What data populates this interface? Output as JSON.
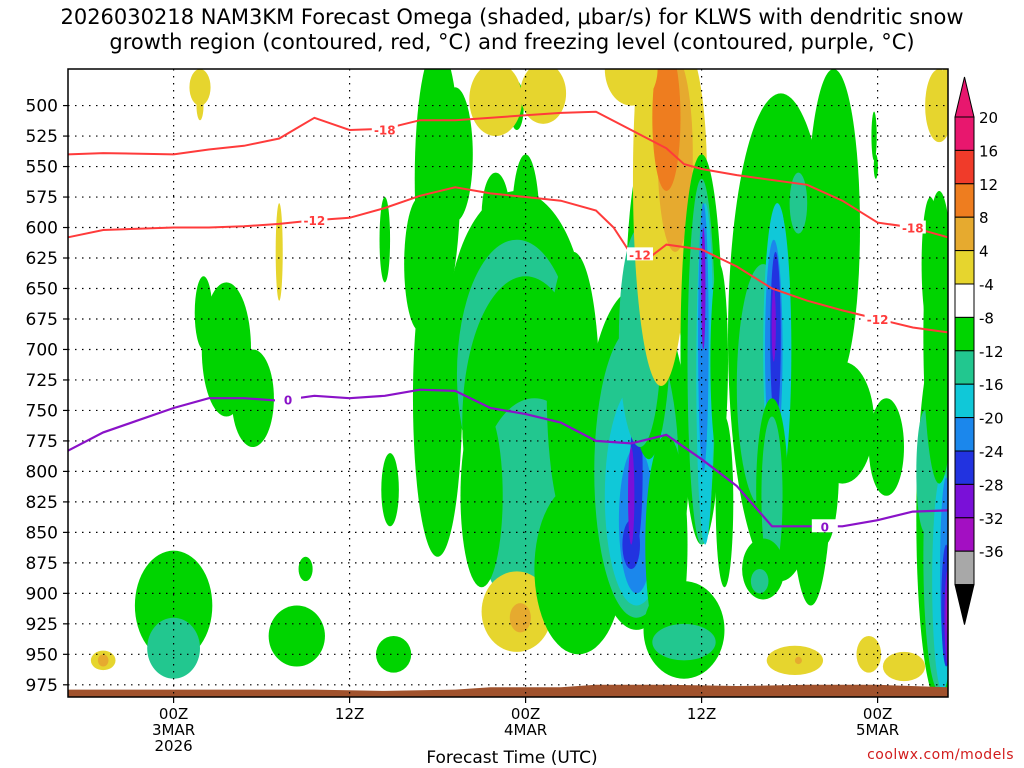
{
  "chart_data": {
    "type": "heatmap",
    "title_line1": "2026030218 NAM3KM Forecast Omega (shaded, μbar/s) for KLWS with dendritic snow",
    "title_line2": "growth region (contoured, red, °C) and freezing level (contoured, purple, °C)",
    "xlabel": "Forecast Time (UTC)",
    "credit": "coolwx.com/models",
    "x_range_hours": [
      -6,
      44
    ],
    "y_range_mb": [
      470,
      985
    ],
    "y_ticks": [
      "500",
      "525",
      "550",
      "575",
      "600",
      "625",
      "650",
      "675",
      "700",
      "725",
      "750",
      "775",
      "800",
      "825",
      "850",
      "875",
      "900",
      "925",
      "950",
      "975"
    ],
    "y_values": [
      500,
      525,
      550,
      575,
      600,
      625,
      650,
      675,
      700,
      725,
      750,
      775,
      800,
      825,
      850,
      875,
      900,
      925,
      950,
      975
    ],
    "x_ticks": [
      {
        "hour": 0,
        "line1": "00Z",
        "line2": "3MAR",
        "line3": "2026"
      },
      {
        "hour": 10,
        "line1": "12Z",
        "line2": "",
        "line3": ""
      },
      {
        "hour": 20,
        "line1": "00Z",
        "line2": "4MAR",
        "line3": ""
      },
      {
        "hour": 30,
        "line1": "12Z",
        "line2": "",
        "line3": ""
      },
      {
        "hour": 40,
        "line1": "00Z",
        "line2": "5MAR",
        "line3": ""
      }
    ],
    "colorbar": [
      {
        "label": "20",
        "color": "#e8176e"
      },
      {
        "label": "16",
        "color": "#f03b2a"
      },
      {
        "label": "12",
        "color": "#ee7d1f"
      },
      {
        "label": "8",
        "color": "#e6aa2f"
      },
      {
        "label": "4",
        "color": "#e6d52e"
      },
      {
        "label": "-4",
        "color": "#ffffff"
      },
      {
        "label": "-8",
        "color": "#00d400"
      },
      {
        "label": "-12",
        "color": "#22c78f"
      },
      {
        "label": "-16",
        "color": "#10c8d8"
      },
      {
        "label": "-20",
        "color": "#1b87ec"
      },
      {
        "label": "-24",
        "color": "#2233e0"
      },
      {
        "label": "-28",
        "color": "#7a10d8"
      },
      {
        "label": "-32",
        "color": "#a30fc2"
      },
      {
        "label": "-36",
        "color": "#a8a8a8"
      }
    ],
    "colorbar_end_color": "#000000",
    "isotherms_red": [
      {
        "label": "-18",
        "points": [
          [
            -6,
            540
          ],
          [
            -4,
            539
          ],
          [
            0,
            540
          ],
          [
            2,
            536
          ],
          [
            4,
            533
          ],
          [
            6,
            527
          ],
          [
            8,
            510
          ],
          [
            10,
            520
          ],
          [
            12,
            519
          ],
          [
            14,
            512
          ],
          [
            16,
            512
          ],
          [
            20,
            508
          ],
          [
            22,
            506
          ],
          [
            24,
            505
          ],
          [
            26,
            520
          ],
          [
            28,
            535
          ],
          [
            29,
            548
          ],
          [
            30,
            552
          ],
          [
            32,
            557
          ],
          [
            36,
            565
          ],
          [
            38,
            578
          ],
          [
            40,
            596
          ],
          [
            42,
            600
          ],
          [
            44,
            608
          ]
        ]
      },
      {
        "label": "-12",
        "points": [
          [
            -6,
            608
          ],
          [
            -4,
            602
          ],
          [
            0,
            600
          ],
          [
            2,
            600
          ],
          [
            4,
            599
          ],
          [
            6,
            597
          ],
          [
            8,
            594
          ],
          [
            10,
            592
          ],
          [
            12,
            584
          ],
          [
            14,
            574
          ],
          [
            16,
            567
          ],
          [
            18,
            572
          ],
          [
            20,
            575
          ],
          [
            22,
            578
          ],
          [
            24,
            586
          ],
          [
            25,
            600
          ],
          [
            26,
            622
          ],
          [
            27,
            625
          ],
          [
            28,
            614
          ],
          [
            30,
            618
          ],
          [
            32,
            632
          ],
          [
            34,
            650
          ],
          [
            36,
            660
          ],
          [
            38,
            668
          ],
          [
            40,
            675
          ],
          [
            42,
            682
          ],
          [
            44,
            686
          ]
        ]
      }
    ],
    "isotherm_purple": {
      "label": "0",
      "points": [
        [
          -6,
          783
        ],
        [
          -4,
          768
        ],
        [
          -2,
          758
        ],
        [
          0,
          748
        ],
        [
          2,
          740
        ],
        [
          4,
          740
        ],
        [
          6,
          742
        ],
        [
          8,
          738
        ],
        [
          10,
          740
        ],
        [
          12,
          738
        ],
        [
          14,
          733
        ],
        [
          16,
          734
        ],
        [
          18,
          748
        ],
        [
          20,
          753
        ],
        [
          22,
          760
        ],
        [
          24,
          775
        ],
        [
          26,
          777
        ],
        [
          28,
          770
        ],
        [
          30,
          790
        ],
        [
          32,
          812
        ],
        [
          34,
          845
        ],
        [
          36,
          845
        ],
        [
          38,
          845
        ],
        [
          40,
          840
        ],
        [
          42,
          833
        ],
        [
          44,
          832
        ]
      ]
    },
    "omega_features": [
      {
        "level": -4,
        "cx": 0,
        "cy": 890,
        "rx": 2,
        "ry": 35
      },
      {
        "level": 8,
        "cx": -4.5,
        "cy": 955,
        "rx": 0.5,
        "ry": 6
      }
    ]
  }
}
